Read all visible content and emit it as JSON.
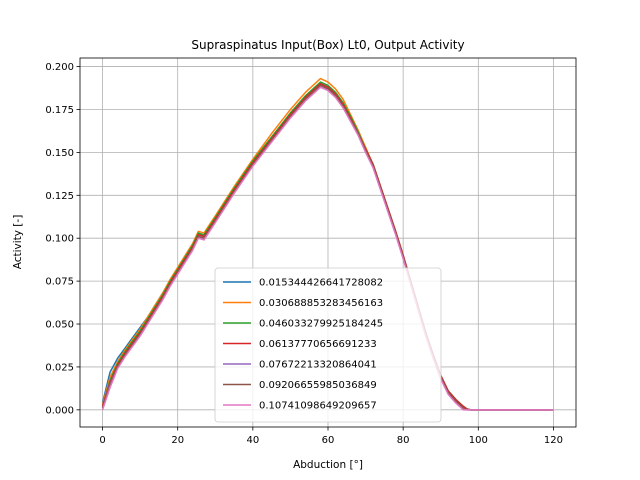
{
  "chart_data": {
    "type": "line",
    "title": "Supraspinatus Input(Box) Lt0, Output Activity",
    "xlabel": "Abduction [°]",
    "ylabel": "Activity [-]",
    "xlim": [
      -6,
      126
    ],
    "ylim": [
      -0.01,
      0.205
    ],
    "xticks": [
      0,
      20,
      40,
      60,
      80,
      100,
      120
    ],
    "yticks": [
      0.0,
      0.025,
      0.05,
      0.075,
      0.1,
      0.125,
      0.15,
      0.175,
      0.2
    ],
    "xtick_labels": [
      "0",
      "20",
      "40",
      "60",
      "80",
      "100",
      "120"
    ],
    "ytick_labels": [
      "0.000",
      "0.025",
      "0.050",
      "0.075",
      "0.100",
      "0.125",
      "0.150",
      "0.175",
      "0.200"
    ],
    "grid": true,
    "legend_position": "lower-center",
    "x": [
      0,
      2,
      4,
      6,
      8,
      10,
      12,
      14,
      16,
      18,
      20,
      22,
      24,
      25.5,
      27,
      30,
      35,
      40,
      45,
      50,
      52,
      54,
      56,
      58,
      60,
      62,
      64,
      66,
      68,
      70,
      72,
      74,
      76,
      78,
      80,
      82,
      84,
      86,
      88,
      90,
      92,
      94,
      96,
      97,
      98,
      100,
      102,
      105,
      110,
      115,
      120
    ],
    "series": [
      {
        "name": "0.015344426641728082",
        "color": "#1f77b4",
        "values": [
          0.004,
          0.022,
          0.03,
          0.036,
          0.042,
          0.048,
          0.054,
          0.061,
          0.068,
          0.075,
          0.082,
          0.089,
          0.096,
          0.103,
          0.101,
          0.111,
          0.127,
          0.143,
          0.158,
          0.172,
          0.177,
          0.182,
          0.186,
          0.19,
          0.188,
          0.184,
          0.178,
          0.17,
          0.161,
          0.152,
          0.143,
          0.13,
          0.117,
          0.104,
          0.09,
          0.075,
          0.06,
          0.045,
          0.032,
          0.02,
          0.011,
          0.006,
          0.002,
          0.0005,
          0.0,
          0.0,
          0.0,
          0.0,
          0.0,
          0.0,
          0.0
        ]
      },
      {
        "name": "0.030688853283456163",
        "color": "#ff7f0e",
        "values": [
          0.003,
          0.019,
          0.028,
          0.035,
          0.041,
          0.047,
          0.054,
          0.061,
          0.068,
          0.076,
          0.083,
          0.09,
          0.097,
          0.104,
          0.103,
          0.113,
          0.13,
          0.146,
          0.161,
          0.175,
          0.18,
          0.185,
          0.189,
          0.193,
          0.191,
          0.187,
          0.181,
          0.172,
          0.163,
          0.153,
          0.143,
          0.13,
          0.117,
          0.104,
          0.09,
          0.075,
          0.06,
          0.045,
          0.032,
          0.02,
          0.011,
          0.006,
          0.002,
          0.0005,
          0.0,
          0.0,
          0.0,
          0.0,
          0.0,
          0.0,
          0.0
        ]
      },
      {
        "name": "0.046033279925184245",
        "color": "#2ca02c",
        "values": [
          0.002,
          0.017,
          0.027,
          0.034,
          0.04,
          0.046,
          0.053,
          0.06,
          0.067,
          0.075,
          0.082,
          0.089,
          0.096,
          0.103,
          0.102,
          0.112,
          0.129,
          0.145,
          0.159,
          0.173,
          0.178,
          0.183,
          0.187,
          0.191,
          0.189,
          0.185,
          0.179,
          0.171,
          0.162,
          0.152,
          0.143,
          0.13,
          0.117,
          0.104,
          0.09,
          0.075,
          0.06,
          0.045,
          0.032,
          0.02,
          0.011,
          0.006,
          0.002,
          0.0005,
          0.0,
          0.0,
          0.0,
          0.0,
          0.0,
          0.0,
          0.0
        ]
      },
      {
        "name": "0.06137770656691233",
        "color": "#d62728",
        "values": [
          0.002,
          0.016,
          0.026,
          0.033,
          0.039,
          0.045,
          0.052,
          0.059,
          0.066,
          0.074,
          0.081,
          0.088,
          0.095,
          0.102,
          0.101,
          0.111,
          0.128,
          0.144,
          0.158,
          0.172,
          0.177,
          0.182,
          0.186,
          0.19,
          0.188,
          0.184,
          0.178,
          0.17,
          0.161,
          0.152,
          0.143,
          0.13,
          0.117,
          0.104,
          0.09,
          0.075,
          0.06,
          0.045,
          0.032,
          0.02,
          0.011,
          0.006,
          0.002,
          0.0005,
          0.0,
          0.0,
          0.0,
          0.0,
          0.0,
          0.0,
          0.0
        ]
      },
      {
        "name": "0.07672213320864041",
        "color": "#9467bd",
        "values": [
          0.001,
          0.015,
          0.025,
          0.032,
          0.038,
          0.044,
          0.051,
          0.058,
          0.065,
          0.073,
          0.08,
          0.087,
          0.094,
          0.101,
          0.1,
          0.11,
          0.127,
          0.143,
          0.157,
          0.171,
          0.176,
          0.181,
          0.185,
          0.189,
          0.187,
          0.183,
          0.177,
          0.169,
          0.161,
          0.151,
          0.142,
          0.129,
          0.116,
          0.103,
          0.089,
          0.074,
          0.059,
          0.044,
          0.031,
          0.019,
          0.01,
          0.005,
          0.001,
          0.0,
          0.0,
          0.0,
          0.0,
          0.0,
          0.0,
          0.0,
          0.0
        ]
      },
      {
        "name": "0.09206655985036849",
        "color": "#8c564b",
        "values": [
          0.001,
          0.014,
          0.025,
          0.032,
          0.038,
          0.044,
          0.051,
          0.058,
          0.065,
          0.073,
          0.08,
          0.087,
          0.094,
          0.101,
          0.1,
          0.11,
          0.127,
          0.143,
          0.157,
          0.171,
          0.176,
          0.181,
          0.185,
          0.189,
          0.187,
          0.183,
          0.177,
          0.169,
          0.161,
          0.151,
          0.142,
          0.129,
          0.116,
          0.103,
          0.089,
          0.074,
          0.059,
          0.044,
          0.031,
          0.019,
          0.01,
          0.005,
          0.001,
          0.0,
          0.0,
          0.0,
          0.0,
          0.0,
          0.0,
          0.0,
          0.0
        ]
      },
      {
        "name": "0.10741098649209657",
        "color": "#e377c2",
        "values": [
          0.0,
          0.013,
          0.024,
          0.031,
          0.037,
          0.043,
          0.05,
          0.057,
          0.064,
          0.072,
          0.079,
          0.086,
          0.093,
          0.1,
          0.099,
          0.109,
          0.126,
          0.142,
          0.156,
          0.17,
          0.175,
          0.18,
          0.184,
          0.188,
          0.186,
          0.182,
          0.176,
          0.168,
          0.16,
          0.15,
          0.141,
          0.128,
          0.115,
          0.102,
          0.088,
          0.073,
          0.058,
          0.043,
          0.03,
          0.018,
          0.009,
          0.004,
          0.0,
          0.0,
          0.0,
          0.0,
          0.0,
          0.0,
          0.0,
          0.0,
          0.0
        ]
      }
    ]
  }
}
